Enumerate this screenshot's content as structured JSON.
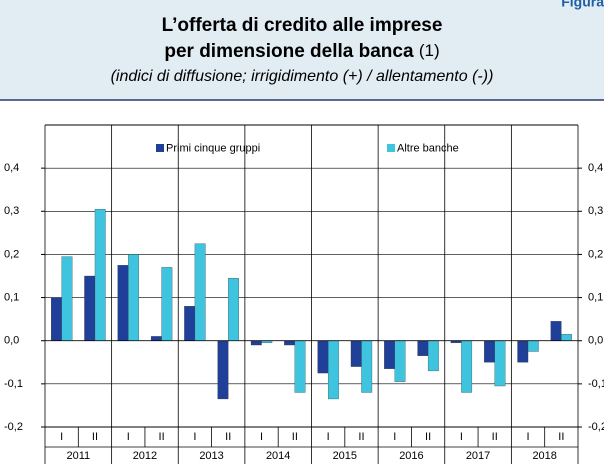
{
  "header_label": "Figura",
  "chart_data": {
    "type": "bar",
    "title": "L’offerta di credito alle imprese",
    "title_line2": "per dimensione della banca",
    "title_note": "(1)",
    "subtitle": "(indici di diffusione; irrigidimento (+) / allentamento (-))",
    "categories": [
      "I",
      "II",
      "I",
      "II",
      "I",
      "II",
      "I",
      "II",
      "I",
      "II",
      "I",
      "II",
      "I",
      "II",
      "I",
      "II"
    ],
    "groups": [
      "2011",
      "2012",
      "2013",
      "2014",
      "2015",
      "2016",
      "2017",
      "2018"
    ],
    "series": [
      {
        "name": "Primi cinque gruppi",
        "color": "#1f3f99",
        "values": [
          0.1,
          0.15,
          0.175,
          0.01,
          0.08,
          -0.135,
          -0.01,
          -0.01,
          -0.075,
          -0.06,
          -0.065,
          -0.035,
          -0.005,
          -0.05,
          -0.05,
          0.045
        ]
      },
      {
        "name": "Altre banche",
        "color": "#3fc4e0",
        "values": [
          0.195,
          0.305,
          0.2,
          0.17,
          0.225,
          0.145,
          -0.005,
          -0.12,
          -0.135,
          -0.12,
          -0.095,
          -0.07,
          -0.12,
          -0.105,
          -0.025,
          0.015
        ]
      }
    ],
    "ylim": [
      -0.2,
      0.5
    ],
    "yticks": [
      {
        "value": -0.2,
        "label": "-0,2"
      },
      {
        "value": -0.1,
        "label": "-0,1"
      },
      {
        "value": 0,
        "label": "0,0"
      },
      {
        "value": 0.1,
        "label": "0,1"
      },
      {
        "value": 0.2,
        "label": "0,2"
      },
      {
        "value": 0.3,
        "label": "0,3"
      },
      {
        "value": 0.4,
        "label": "0,4"
      }
    ],
    "grid": true
  }
}
